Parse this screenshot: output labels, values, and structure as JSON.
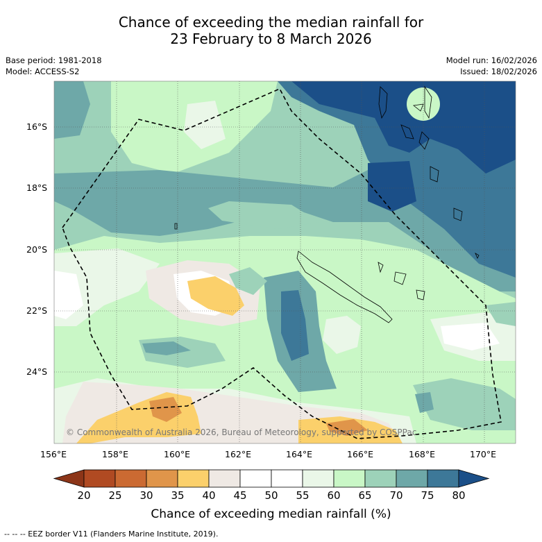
{
  "title": {
    "line1": "Chance of exceeding the median rainfall for",
    "line2": "23 February to 8 March 2026"
  },
  "meta": {
    "base_period": "Base period: 1981-2018",
    "model": "Model: ACCESS-S2",
    "model_run": "Model run: 16/02/2026",
    "issued": "Issued: 18/02/2026"
  },
  "map": {
    "lat_labels": [
      "16°S",
      "18°S",
      "20°S",
      "22°S",
      "24°S"
    ],
    "lon_labels": [
      "156°E",
      "158°E",
      "160°E",
      "162°E",
      "164°E",
      "166°E",
      "168°E",
      "170°E"
    ],
    "copyright": "© Commonwealth of Australia 2026, Bureau of Meteorology, supported by COSPPac"
  },
  "colorbar": {
    "labels": [
      "20",
      "25",
      "30",
      "35",
      "40",
      "45",
      "50",
      "55",
      "60",
      "65",
      "70",
      "75",
      "80"
    ],
    "colors": [
      "#b04a22",
      "#cb6a32",
      "#e0954a",
      "#fbd06b",
      "#efe9e4",
      "#ffffff",
      "#ffffff",
      "#eaf7e8",
      "#c9f7c6",
      "#9dd2b9",
      "#6ea8a8",
      "#3d7898"
    ],
    "low_color": "#8c3518",
    "high_color": "#1b4f88",
    "title": "Chance of exceeding median rainfall (%)"
  },
  "footnote": "--  --  -- EEZ border V11 (Flanders Marine Institute, 2019)."
}
